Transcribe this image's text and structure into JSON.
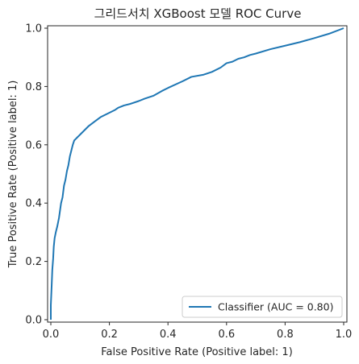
{
  "chart_data": {
    "type": "line",
    "title": "그리드서치 XGBoost 모델 ROC Curve",
    "xlabel": "False Positive Rate (Positive label: 1)",
    "ylabel": "True Positive Rate (Positive label: 1)",
    "xlim": [
      0,
      1
    ],
    "ylim": [
      0,
      1
    ],
    "xticks": [
      "0.0",
      "0.2",
      "0.4",
      "0.6",
      "0.8",
      "1.0"
    ],
    "yticks": [
      "0.0",
      "0.2",
      "0.4",
      "0.6",
      "0.8",
      "1.0"
    ],
    "grid": false,
    "legend_position": "lower-right",
    "line_color": "#1f77b4",
    "series": [
      {
        "name": "Classifier (AUC = 0.80)",
        "x": [
          0.0,
          0.0,
          0.003,
          0.005,
          0.008,
          0.01,
          0.013,
          0.017,
          0.022,
          0.028,
          0.035,
          0.04,
          0.045,
          0.05,
          0.055,
          0.06,
          0.065,
          0.07,
          0.075,
          0.08,
          0.085,
          0.09,
          0.095,
          0.1,
          0.11,
          0.12,
          0.13,
          0.15,
          0.17,
          0.2,
          0.22,
          0.23,
          0.25,
          0.27,
          0.3,
          0.32,
          0.35,
          0.38,
          0.4,
          0.45,
          0.48,
          0.52,
          0.55,
          0.58,
          0.6,
          0.62,
          0.64,
          0.66,
          0.68,
          0.7,
          0.75,
          0.8,
          0.85,
          0.9,
          0.95,
          1.0
        ],
        "y": [
          0.0,
          0.05,
          0.12,
          0.17,
          0.21,
          0.25,
          0.28,
          0.3,
          0.32,
          0.35,
          0.4,
          0.42,
          0.46,
          0.48,
          0.51,
          0.53,
          0.56,
          0.58,
          0.6,
          0.615,
          0.62,
          0.625,
          0.63,
          0.635,
          0.645,
          0.655,
          0.665,
          0.68,
          0.695,
          0.71,
          0.72,
          0.727,
          0.735,
          0.74,
          0.75,
          0.758,
          0.768,
          0.785,
          0.795,
          0.818,
          0.833,
          0.84,
          0.85,
          0.865,
          0.88,
          0.885,
          0.895,
          0.9,
          0.908,
          0.913,
          0.928,
          0.94,
          0.952,
          0.966,
          0.981,
          1.0
        ]
      }
    ]
  }
}
